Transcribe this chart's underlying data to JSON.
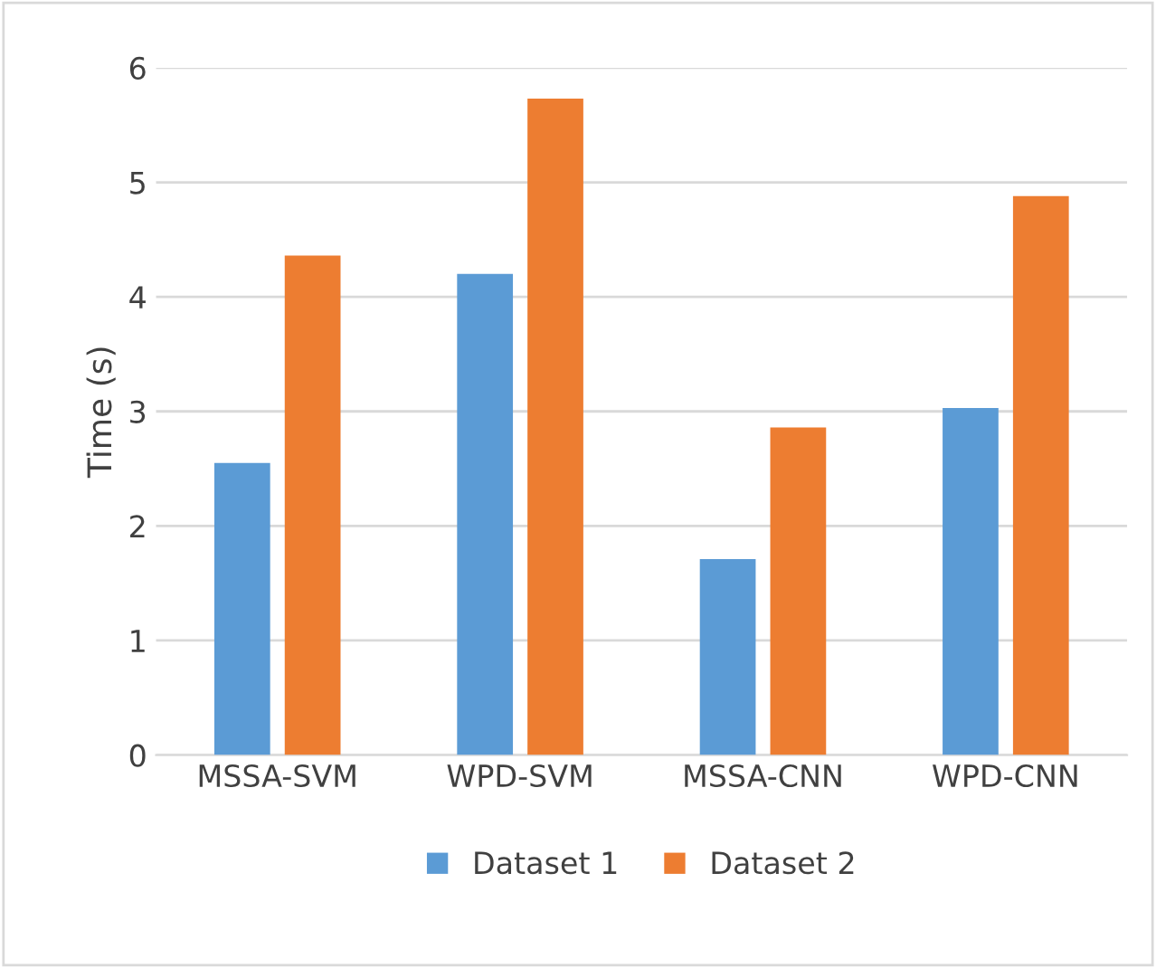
{
  "chart_data": {
    "type": "bar",
    "ylabel": "Time (s)",
    "categories": [
      "MSSA-SVM",
      "WPD-SVM",
      "MSSA-CNN",
      "WPD-CNN"
    ],
    "series": [
      {
        "name": "Dataset 1",
        "color": "#5b9bd5",
        "values": [
          2.55,
          4.2,
          1.71,
          3.03
        ]
      },
      {
        "name": "Dataset 2",
        "color": "#ed7d31",
        "values": [
          4.36,
          5.73,
          2.86,
          4.88
        ]
      }
    ],
    "ylim": [
      0,
      6
    ],
    "yticks": [
      0,
      1,
      2,
      3,
      4,
      5,
      6
    ],
    "grid": "y",
    "legend": "bottom"
  }
}
